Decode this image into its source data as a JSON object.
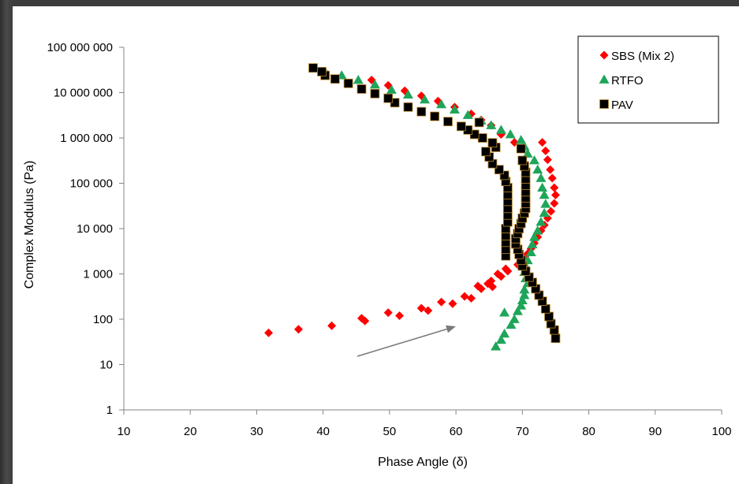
{
  "chart_data": {
    "type": "scatter",
    "xlabel": "Phase Angle (δ)",
    "ylabel": "Complex Modulus (Pa)",
    "xlim": [
      10,
      100
    ],
    "ylim": [
      1,
      100000000
    ],
    "y_scale": "log",
    "x_ticks": [
      "10",
      "20",
      "30",
      "40",
      "50",
      "60",
      "70",
      "80",
      "90",
      "100"
    ],
    "y_ticks": [
      "1",
      "10",
      "100",
      "1 000",
      "10 000",
      "100 000",
      "1 000 000",
      "10 000 000",
      "100 000 000"
    ],
    "grid": false,
    "legend_position": "top-right",
    "annotation": "arrow pointing up-right",
    "series": [
      {
        "name": "SBS (Mix 2)",
        "color": "#ff0000",
        "marker": "diamond",
        "points": [
          [
            31.8,
            50
          ],
          [
            36.3,
            60
          ],
          [
            41.3,
            72
          ],
          [
            45.8,
            105
          ],
          [
            46.3,
            92
          ],
          [
            49.8,
            140
          ],
          [
            51.5,
            120
          ],
          [
            54.8,
            175
          ],
          [
            55.8,
            155
          ],
          [
            57.8,
            240
          ],
          [
            59.5,
            220
          ],
          [
            61.3,
            320
          ],
          [
            62.3,
            290
          ],
          [
            63.3,
            540
          ],
          [
            63.8,
            470
          ],
          [
            64.8,
            610
          ],
          [
            65.3,
            700
          ],
          [
            65.5,
            520
          ],
          [
            66.3,
            1000
          ],
          [
            66.8,
            880
          ],
          [
            67.5,
            1300
          ],
          [
            67.8,
            1150
          ],
          [
            69.3,
            1600
          ],
          [
            69.8,
            1700
          ],
          [
            70.3,
            2200
          ],
          [
            70.8,
            2800
          ],
          [
            71.3,
            3600
          ],
          [
            71.8,
            4800
          ],
          [
            72.3,
            6500
          ],
          [
            72.8,
            9000
          ],
          [
            73.3,
            12000
          ],
          [
            73.8,
            17000
          ],
          [
            74.3,
            24000
          ],
          [
            74.8,
            36000
          ],
          [
            75.0,
            55000
          ],
          [
            74.8,
            80000
          ],
          [
            74.5,
            130000
          ],
          [
            74.2,
            200000
          ],
          [
            73.8,
            330000
          ],
          [
            73.5,
            520000
          ],
          [
            73.0,
            800000
          ],
          [
            68.8,
            800000
          ],
          [
            66.8,
            1200000
          ],
          [
            65.3,
            1900000
          ],
          [
            63.8,
            2500000
          ],
          [
            62.3,
            3400000
          ],
          [
            59.8,
            4800000
          ],
          [
            57.3,
            6500000
          ],
          [
            54.8,
            8500000
          ],
          [
            52.3,
            11000000
          ],
          [
            49.8,
            14500000
          ],
          [
            47.3,
            19000000
          ]
        ]
      },
      {
        "name": "RTFO",
        "color": "#1fa55a",
        "marker": "triangle",
        "points": [
          [
            66.0,
            25
          ],
          [
            66.8,
            35
          ],
          [
            67.3,
            48
          ],
          [
            67.3,
            140
          ],
          [
            68.3,
            75
          ],
          [
            68.8,
            100
          ],
          [
            69.3,
            150
          ],
          [
            69.8,
            200
          ],
          [
            70.0,
            260
          ],
          [
            70.3,
            340
          ],
          [
            70.3,
            450
          ],
          [
            70.8,
            620
          ],
          [
            70.5,
            800
          ],
          [
            70.3,
            1100
          ],
          [
            70.5,
            1500
          ],
          [
            70.8,
            2000
          ],
          [
            71.3,
            3000
          ],
          [
            71.5,
            4500
          ],
          [
            71.8,
            6500
          ],
          [
            72.3,
            9000
          ],
          [
            72.8,
            14000
          ],
          [
            73.3,
            22000
          ],
          [
            73.5,
            35000
          ],
          [
            73.3,
            55000
          ],
          [
            73.0,
            80000
          ],
          [
            72.8,
            130000
          ],
          [
            72.3,
            200000
          ],
          [
            71.8,
            320000
          ],
          [
            70.8,
            450000
          ],
          [
            70.3,
            650000
          ],
          [
            69.8,
            900000
          ],
          [
            68.2,
            1200000
          ],
          [
            66.8,
            1500000
          ],
          [
            65.3,
            1900000
          ],
          [
            63.8,
            2400000
          ],
          [
            61.8,
            3200000
          ],
          [
            59.8,
            4200000
          ],
          [
            57.8,
            5500000
          ],
          [
            55.3,
            7000000
          ],
          [
            52.8,
            9000000
          ],
          [
            50.3,
            11500000
          ],
          [
            47.8,
            15000000
          ],
          [
            45.3,
            19000000
          ],
          [
            42.8,
            24000000
          ],
          [
            40.3,
            29000000
          ],
          [
            38.8,
            35000000
          ]
        ]
      },
      {
        "name": "PAV",
        "color": "#000000",
        "marker": "square",
        "points": [
          [
            75.0,
            38
          ],
          [
            74.8,
            58
          ],
          [
            74.3,
            80
          ],
          [
            74.0,
            115
          ],
          [
            73.5,
            170
          ],
          [
            73.0,
            250
          ],
          [
            72.5,
            340
          ],
          [
            72.0,
            470
          ],
          [
            71.5,
            650
          ],
          [
            71.0,
            850
          ],
          [
            70.5,
            1150
          ],
          [
            70.0,
            1500
          ],
          [
            69.8,
            2000
          ],
          [
            69.5,
            2700
          ],
          [
            69.3,
            3500
          ],
          [
            69.0,
            4600
          ],
          [
            69.0,
            6000
          ],
          [
            69.3,
            7800
          ],
          [
            69.5,
            10000
          ],
          [
            69.8,
            13000
          ],
          [
            70.0,
            17000
          ],
          [
            70.3,
            22000
          ],
          [
            70.5,
            28000
          ],
          [
            70.5,
            36000
          ],
          [
            70.5,
            48000
          ],
          [
            70.5,
            65000
          ],
          [
            70.5,
            90000
          ],
          [
            70.5,
            125000
          ],
          [
            70.5,
            175000
          ],
          [
            70.3,
            240000
          ],
          [
            70.0,
            320000
          ],
          [
            69.8,
            580000
          ],
          [
            67.5,
            2500
          ],
          [
            67.5,
            3500
          ],
          [
            67.5,
            5000
          ],
          [
            67.5,
            7000
          ],
          [
            67.5,
            10000
          ],
          [
            67.8,
            14000
          ],
          [
            67.8,
            20000
          ],
          [
            67.8,
            28000
          ],
          [
            67.8,
            40000
          ],
          [
            67.8,
            56000
          ],
          [
            67.8,
            80000
          ],
          [
            67.5,
            110000
          ],
          [
            67.3,
            150000
          ],
          [
            66.5,
            200000
          ],
          [
            65.5,
            270000
          ],
          [
            65.0,
            380000
          ],
          [
            64.5,
            500000
          ],
          [
            66.0,
            620000
          ],
          [
            65.5,
            780000
          ],
          [
            64.0,
            1000000
          ],
          [
            62.8,
            1200000
          ],
          [
            61.8,
            1500000
          ],
          [
            60.8,
            1800000
          ],
          [
            63.5,
            2200000
          ],
          [
            58.8,
            2300000
          ],
          [
            56.8,
            3000000
          ],
          [
            54.8,
            3800000
          ],
          [
            52.8,
            4800000
          ],
          [
            50.8,
            6000000
          ],
          [
            49.8,
            7500000
          ],
          [
            47.8,
            9500000
          ],
          [
            45.8,
            12000000
          ],
          [
            43.8,
            16000000
          ],
          [
            41.8,
            20000000
          ],
          [
            40.3,
            24000000
          ],
          [
            39.8,
            29000000
          ],
          [
            38.5,
            35000000
          ]
        ]
      }
    ]
  }
}
